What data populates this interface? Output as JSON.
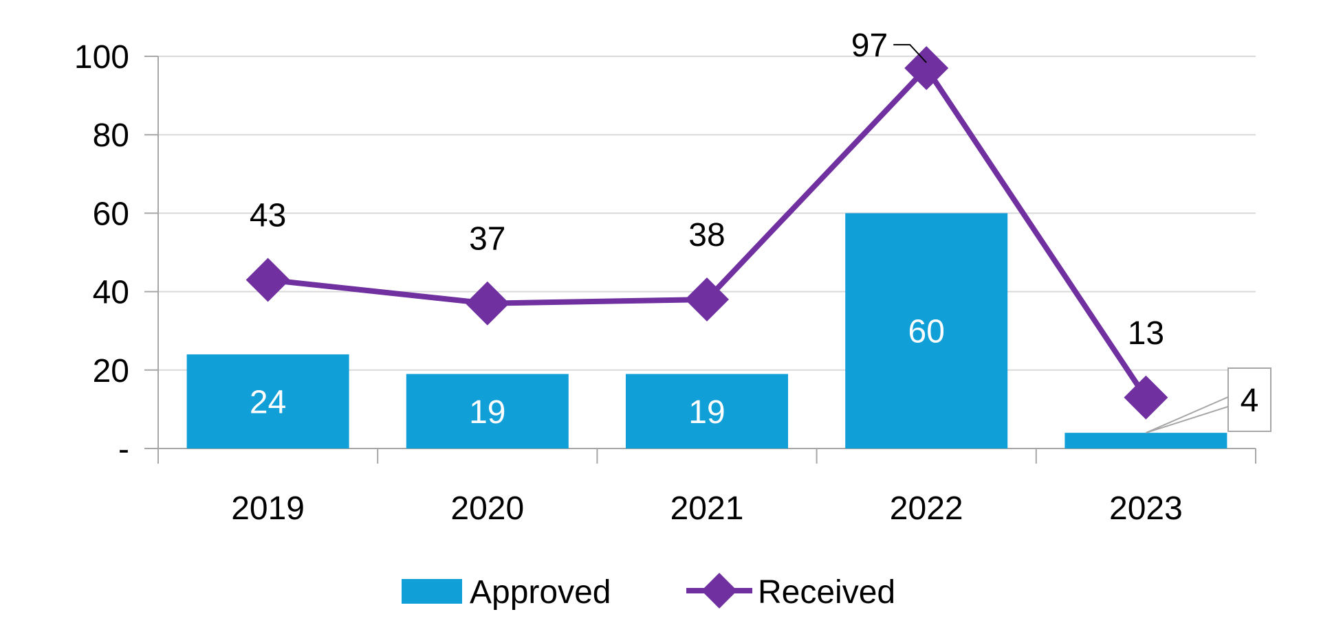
{
  "chart_data": {
    "type": "bar+line",
    "categories": [
      "2019",
      "2020",
      "2021",
      "2022",
      "2023"
    ],
    "series": [
      {
        "name": "Approved",
        "type": "bar",
        "color": "#119FD8",
        "values": [
          24,
          19,
          19,
          60,
          4
        ]
      },
      {
        "name": "Received",
        "type": "line",
        "marker": "diamond",
        "color": "#7030A0",
        "values": [
          43,
          37,
          38,
          97,
          13
        ]
      }
    ],
    "ylim": [
      0,
      100
    ],
    "yticks": [
      0,
      20,
      40,
      60,
      80,
      100
    ],
    "ytick_labels": [
      "-",
      "20",
      "40",
      "60",
      "80",
      "100"
    ],
    "grid": true,
    "legend": "bottom-center",
    "bar_label_color": "#FFFFFF",
    "line_label_color": "#000000"
  }
}
